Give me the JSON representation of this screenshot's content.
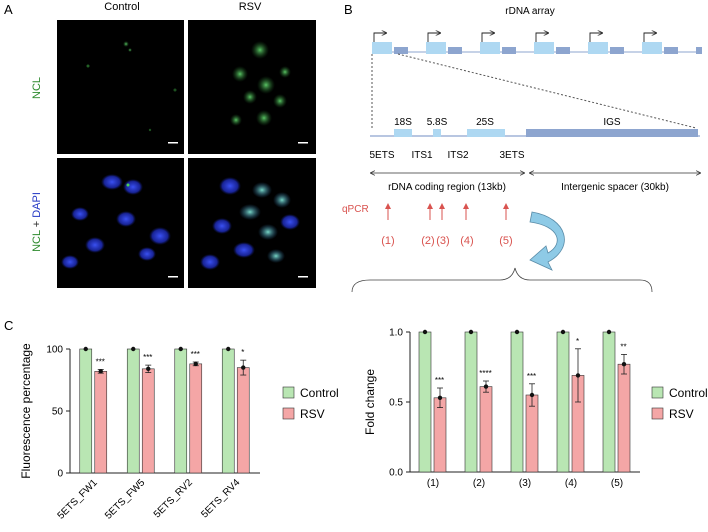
{
  "panels": {
    "a": "A",
    "b": "B",
    "c": "C"
  },
  "panel_a": {
    "col_headers": [
      "Control",
      "RSV"
    ],
    "row1_label": "NCL",
    "row2_label_ncl": "NCL",
    "row2_label_plus": " + ",
    "row2_label_dapi": "DAPI"
  },
  "panel_b": {
    "title": "rDNA array",
    "segments_top": [
      "18S",
      "5.8S",
      "25S",
      "IGS"
    ],
    "segments_bottom": [
      "5ETS",
      "ITS1",
      "ITS2",
      "3ETS"
    ],
    "coding_region": "rDNA coding region (13kb)",
    "spacer": "Intergenic spacer (30kb)",
    "qpcr_label": "qPCR",
    "qpcr_sites": [
      "(1)",
      "(2)",
      "(3)",
      "(4)",
      "(5)"
    ],
    "colors": {
      "light": "#aed8f2",
      "dark": "#8da5cf",
      "qpcr": "#d9534f",
      "arrow": "#8ecae6"
    }
  },
  "chart_data": [
    {
      "type": "bar",
      "ylabel": "Fluorescence percentage",
      "ylim": [
        0,
        100
      ],
      "yticks": [
        0,
        50,
        100
      ],
      "categories": [
        "5ETS_FW1",
        "5ETS_FW5",
        "5ETS_RV2",
        "5ETS_RV4"
      ],
      "series": [
        {
          "name": "Control",
          "color": "#b9e6b3",
          "values": [
            100,
            100,
            100,
            100
          ],
          "errors": [
            0,
            0,
            0,
            0
          ]
        },
        {
          "name": "RSV",
          "color": "#f4a6a6",
          "values": [
            82,
            84,
            88,
            85
          ],
          "errors": [
            1.5,
            3,
            1.5,
            6
          ]
        }
      ],
      "significance": [
        "***",
        "***",
        "***",
        "*"
      ],
      "legend": [
        "Control",
        "RSV"
      ],
      "legend_position": "right"
    },
    {
      "type": "bar",
      "ylabel": "Fold change",
      "ylim": [
        0,
        1.0
      ],
      "yticks": [
        "0.0",
        "0.5",
        "1.0"
      ],
      "categories": [
        "(1)",
        "(2)",
        "(3)",
        "(4)",
        "(5)"
      ],
      "series": [
        {
          "name": "Control",
          "color": "#b9e6b3",
          "values": [
            1.0,
            1.0,
            1.0,
            1.0,
            1.0
          ],
          "errors": [
            0,
            0,
            0,
            0,
            0
          ]
        },
        {
          "name": "RSV",
          "color": "#f4a6a6",
          "values": [
            0.53,
            0.61,
            0.55,
            0.69,
            0.77
          ],
          "errors": [
            0.07,
            0.04,
            0.08,
            0.19,
            0.07
          ]
        }
      ],
      "significance": [
        "***",
        "****",
        "***",
        "*",
        "**"
      ],
      "legend": [
        "Control",
        "RSV"
      ],
      "legend_position": "right"
    }
  ]
}
